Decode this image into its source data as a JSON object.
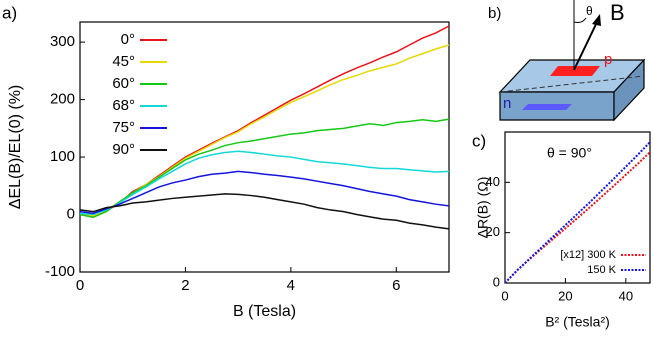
{
  "chart_data": [
    {
      "type": "line",
      "panel_label": "a)",
      "x_label": "B (Tesla)",
      "y_label": "ΔEL(B)/EL(0) (%)",
      "x": [
        0,
        0.25,
        0.5,
        0.75,
        1,
        1.25,
        1.5,
        1.75,
        2,
        2.25,
        2.5,
        2.75,
        3,
        3.25,
        3.5,
        3.75,
        4,
        4.25,
        4.5,
        4.75,
        5,
        5.25,
        5.5,
        5.75,
        6,
        6.25,
        6.5,
        6.75,
        7
      ],
      "xlim": [
        0,
        7
      ],
      "xticks": [
        0,
        2,
        4,
        6
      ],
      "ylim": [
        -100,
        335
      ],
      "yticks": [
        -100,
        0,
        100,
        200,
        300
      ],
      "legend": "upper-left",
      "dash": false,
      "series": [
        {
          "name": "0°",
          "color": "#e8141c",
          "values": [
            0,
            -4,
            6,
            20,
            40,
            52,
            68,
            84,
            100,
            112,
            124,
            135,
            146,
            160,
            173,
            186,
            199,
            210,
            222,
            234,
            245,
            255,
            264,
            274,
            283,
            295,
            307,
            316,
            328
          ]
        },
        {
          "name": "45°",
          "color": "#e6d800",
          "values": [
            2,
            -2,
            8,
            22,
            38,
            52,
            66,
            82,
            98,
            110,
            122,
            134,
            144,
            158,
            170,
            183,
            195,
            205,
            215,
            226,
            235,
            242,
            250,
            256,
            262,
            272,
            280,
            288,
            295
          ]
        },
        {
          "name": "60°",
          "color": "#14c814",
          "values": [
            0,
            -5,
            5,
            22,
            38,
            50,
            65,
            80,
            95,
            105,
            112,
            120,
            125,
            128,
            132,
            136,
            140,
            142,
            146,
            148,
            150,
            154,
            158,
            155,
            160,
            162,
            165,
            162,
            166
          ]
        },
        {
          "name": "68°",
          "color": "#14d8d8",
          "values": [
            2,
            0,
            8,
            20,
            35,
            48,
            62,
            75,
            88,
            98,
            104,
            108,
            110,
            108,
            105,
            102,
            100,
            96,
            92,
            90,
            88,
            85,
            82,
            80,
            80,
            78,
            76,
            74,
            75
          ]
        },
        {
          "name": "75°",
          "color": "#1414dc",
          "values": [
            5,
            2,
            10,
            18,
            28,
            38,
            48,
            55,
            60,
            66,
            70,
            72,
            75,
            73,
            70,
            68,
            65,
            62,
            58,
            54,
            50,
            45,
            40,
            36,
            32,
            26,
            22,
            18,
            15
          ]
        },
        {
          "name": "90°",
          "color": "#111111",
          "values": [
            8,
            5,
            12,
            15,
            20,
            22,
            25,
            28,
            30,
            32,
            34,
            36,
            35,
            33,
            30,
            26,
            22,
            18,
            12,
            8,
            5,
            0,
            -4,
            -8,
            -10,
            -15,
            -18,
            -22,
            -25
          ]
        }
      ]
    },
    {
      "type": "line",
      "panel_label": "c)",
      "x_label": "B² (Tesla²)",
      "y_label": "ΔR(B) (Ω)",
      "annotation": "θ = 90°",
      "x": [
        0,
        4,
        8,
        12,
        16,
        20,
        24,
        28,
        32,
        36,
        40,
        44,
        48
      ],
      "xlim": [
        0,
        48
      ],
      "xticks": [
        0,
        20,
        40
      ],
      "ylim": [
        0,
        60
      ],
      "yticks": [
        0,
        20,
        40
      ],
      "legend": "lower-right",
      "dash": true,
      "series": [
        {
          "name": "[x12] 300 K",
          "color": "#e8141c",
          "values": [
            0,
            5,
            9.3,
            13.5,
            17.6,
            21.7,
            25.8,
            30,
            34.3,
            38.6,
            43,
            47.4,
            52
          ]
        },
        {
          "name": "150 K",
          "color": "#1414dc",
          "values": [
            0,
            5,
            9.5,
            14,
            18.5,
            23,
            27.5,
            32,
            36.7,
            41.4,
            46.2,
            51,
            56
          ]
        }
      ]
    }
  ],
  "diagram": {
    "panel_label": "b)",
    "angle": "θ",
    "field": "B",
    "top_contact": "p",
    "side_contact": "n"
  }
}
